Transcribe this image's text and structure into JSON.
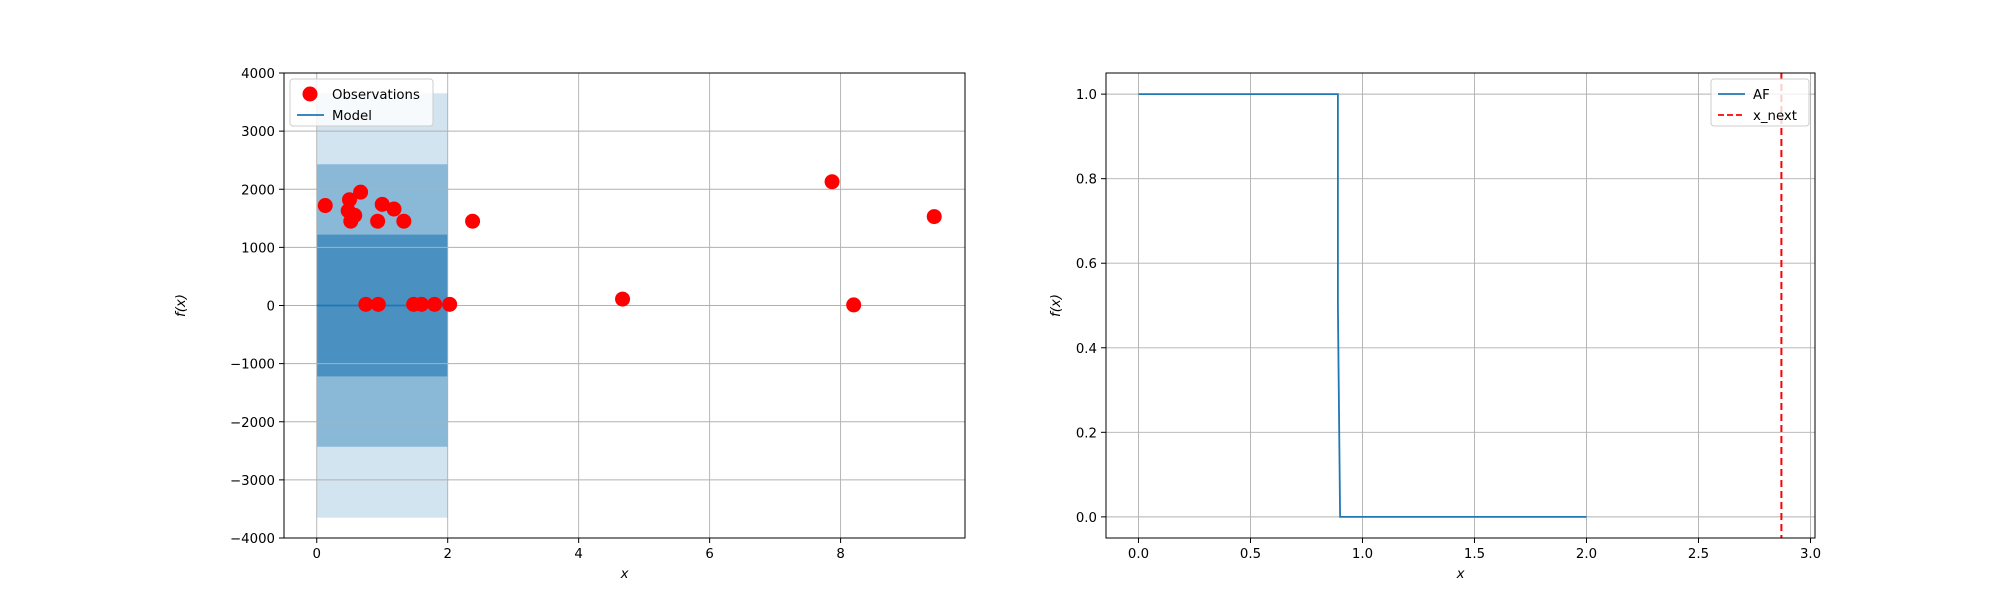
{
  "chart_data": [
    {
      "type": "scatter",
      "title": "",
      "xlabel": "x",
      "ylabel": "f(x)",
      "xlim": [
        -0.5,
        9.9
      ],
      "ylim": [
        -4000,
        4000
      ],
      "xticks": [
        0,
        2,
        4,
        6,
        8
      ],
      "yticks": [
        -4000,
        -3000,
        -2000,
        -1000,
        0,
        1000,
        2000,
        3000,
        4000
      ],
      "xtick_labels": [
        "0",
        "2",
        "4",
        "6",
        "8"
      ],
      "ytick_labels": [
        "−4000",
        "−3000",
        "−2000",
        "−1000",
        "0",
        "1000",
        "2000",
        "3000",
        "4000"
      ],
      "grid": true,
      "legend_position": "top-left",
      "series": [
        {
          "name": "Observations",
          "kind": "scatter",
          "color": "#ff0000",
          "x": [
            0.13,
            0.48,
            0.5,
            0.52,
            0.58,
            0.67,
            0.75,
            0.93,
            0.94,
            1.0,
            1.18,
            1.33,
            1.48,
            1.6,
            1.8,
            2.03,
            2.38,
            4.67,
            7.87,
            8.2,
            9.43
          ],
          "y": [
            1720,
            1630,
            1820,
            1450,
            1550,
            1950,
            20,
            1450,
            20,
            1740,
            1660,
            1450,
            20,
            20,
            20,
            20,
            1450,
            110,
            2130,
            10,
            1530
          ]
        },
        {
          "name": "Model",
          "kind": "line",
          "color": "#1f77b4",
          "x": [
            0,
            2
          ],
          "y": [
            0,
            0
          ]
        }
      ],
      "confidence_bands": [
        {
          "x": [
            0,
            2
          ],
          "lower": -3650,
          "upper": 3650,
          "color": "#1f77b4",
          "opacity": 0.2
        },
        {
          "x": [
            0,
            2
          ],
          "lower": -2430,
          "upper": 2430,
          "color": "#1f77b4",
          "opacity": 0.4
        },
        {
          "x": [
            0,
            2
          ],
          "lower": -1220,
          "upper": 1220,
          "color": "#1f77b4",
          "opacity": 0.6
        }
      ]
    },
    {
      "type": "line",
      "title": "",
      "xlabel": "x",
      "ylabel": "f(x)",
      "xlim": [
        -0.145,
        3.02
      ],
      "ylim": [
        -0.05,
        1.05
      ],
      "xticks": [
        0.0,
        0.5,
        1.0,
        1.5,
        2.0,
        2.5,
        3.0
      ],
      "yticks": [
        0.0,
        0.2,
        0.4,
        0.6,
        0.8,
        1.0
      ],
      "xtick_labels": [
        "0.0",
        "0.5",
        "1.0",
        "1.5",
        "2.0",
        "2.5",
        "3.0"
      ],
      "ytick_labels": [
        "0.0",
        "0.2",
        "0.4",
        "0.6",
        "0.8",
        "1.0"
      ],
      "grid": true,
      "legend_position": "top-right",
      "series": [
        {
          "name": "AF",
          "kind": "line",
          "color": "#1f77b4",
          "x": [
            0.0,
            0.89,
            0.89,
            0.9,
            2.0
          ],
          "y": [
            1.0,
            1.0,
            0.5,
            0.0,
            0.0
          ]
        },
        {
          "name": "x_next",
          "kind": "vline",
          "color": "#ff0000",
          "dash": "dashed",
          "x": 2.87
        }
      ]
    }
  ]
}
